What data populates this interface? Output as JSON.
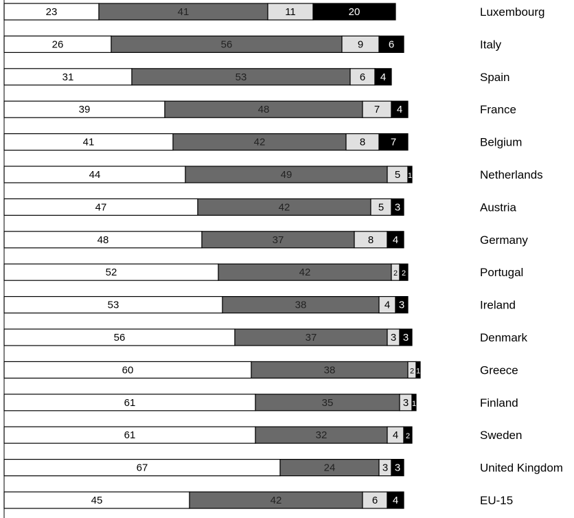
{
  "chart_data": {
    "type": "bar",
    "orientation": "horizontal",
    "stacked": true,
    "title": "",
    "xlabel": "",
    "ylabel": "",
    "xlim": [
      0,
      100
    ],
    "grid": false,
    "legend": "none",
    "categories": [
      "Luxembourg",
      "Italy",
      "Spain",
      "France",
      "Belgium",
      "Netherlands",
      "Austria",
      "Germany",
      "Portugal",
      "Ireland",
      "Denmark",
      "Greece",
      "Finland",
      "Sweden",
      "United Kingdom",
      "EU-15"
    ],
    "series": [
      {
        "color": "#ffffff",
        "label_color": "#000000",
        "values": [
          23,
          26,
          31,
          39,
          41,
          44,
          47,
          48,
          52,
          53,
          56,
          60,
          61,
          61,
          67,
          45
        ]
      },
      {
        "color": "#6a6a6a",
        "label_color": "#222222",
        "values": [
          41,
          56,
          53,
          48,
          42,
          49,
          42,
          37,
          42,
          38,
          37,
          38,
          35,
          32,
          24,
          42
        ]
      },
      {
        "color": "#e0e0e0",
        "label_color": "#000000",
        "values": [
          11,
          9,
          6,
          7,
          8,
          5,
          5,
          8,
          2,
          4,
          3,
          2,
          3,
          4,
          3,
          6
        ]
      },
      {
        "color": "#000000",
        "label_color": "#ffffff",
        "values": [
          20,
          6,
          4,
          4,
          7,
          1,
          3,
          4,
          2,
          3,
          3,
          1,
          1,
          2,
          3,
          4
        ]
      }
    ]
  }
}
